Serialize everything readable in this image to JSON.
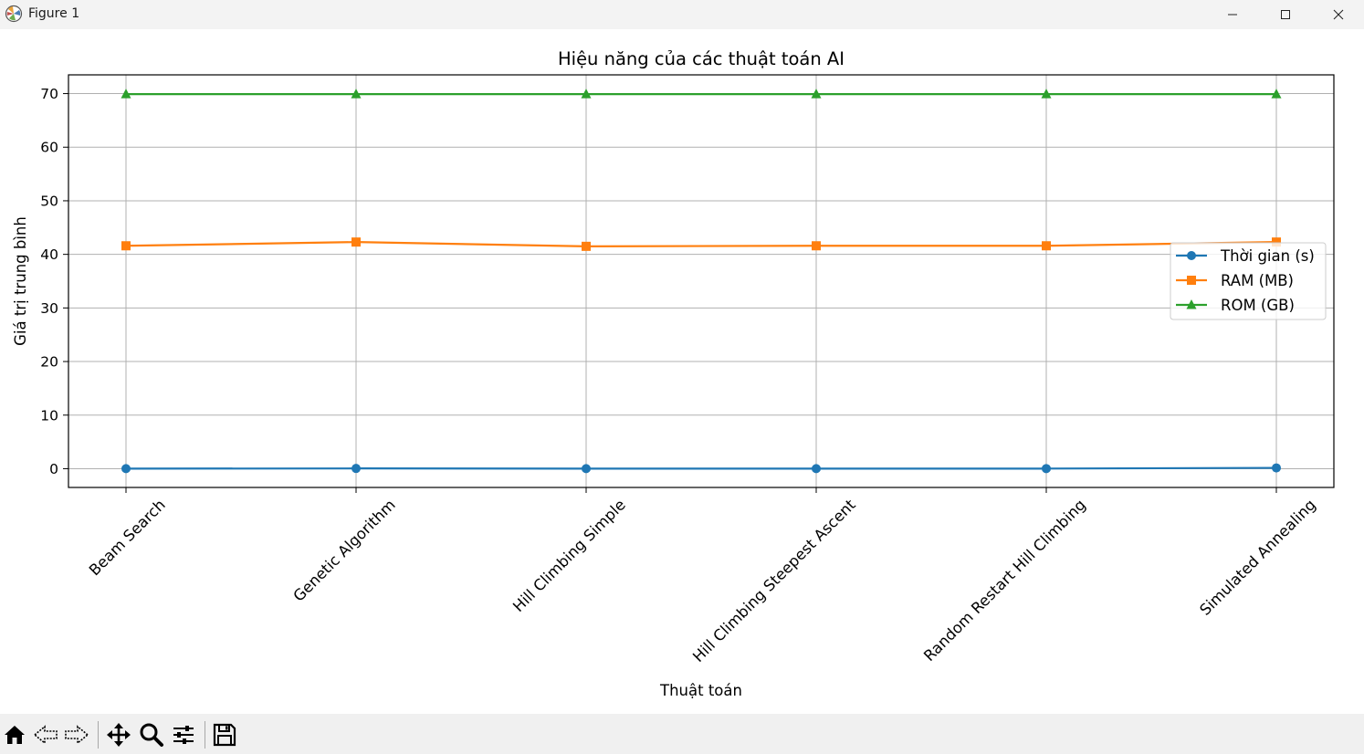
{
  "window": {
    "title": "Figure 1",
    "icons": {
      "app": "matplotlib-logo-icon",
      "minimize": "minimize-icon",
      "maximize": "maximize-icon",
      "close": "close-icon"
    }
  },
  "toolbar": {
    "tools": [
      "home-icon",
      "back-arrow-icon",
      "forward-arrow-icon",
      "pan-icon",
      "zoom-icon",
      "configure-subplots-icon",
      "save-icon"
    ]
  },
  "chart_data": {
    "type": "line",
    "title": "Hiệu năng của các thuật toán AI",
    "xlabel": "Thuật toán",
    "ylabel": "Giá trị trung bình",
    "categories": [
      "Beam Search",
      "Genetic Algorithm",
      "Hill Climbing Simple",
      "Hill Climbing Steepest Ascent",
      "Random Restart Hill Climbing",
      "Simulated Annealing"
    ],
    "ylim": [
      -3.5,
      73.5
    ],
    "yticks": [
      0,
      10,
      20,
      30,
      40,
      50,
      60,
      70
    ],
    "yticklabels": [
      "0",
      "10",
      "20",
      "30",
      "40",
      "50",
      "60",
      "70"
    ],
    "grid": true,
    "legend_position": "center-right",
    "series": [
      {
        "name": "Thời gian (s)",
        "values": [
          0.01,
          0.05,
          0.01,
          0.01,
          0.02,
          0.15
        ],
        "color": "#1f77b4",
        "marker": "circle"
      },
      {
        "name": "RAM (MB)",
        "values": [
          41.6,
          42.3,
          41.5,
          41.6,
          41.6,
          42.3
        ],
        "color": "#ff7f0e",
        "marker": "square"
      },
      {
        "name": "ROM (GB)",
        "values": [
          69.9,
          69.9,
          69.9,
          69.9,
          69.9,
          69.9
        ],
        "color": "#2ca02c",
        "marker": "triangle"
      }
    ]
  }
}
